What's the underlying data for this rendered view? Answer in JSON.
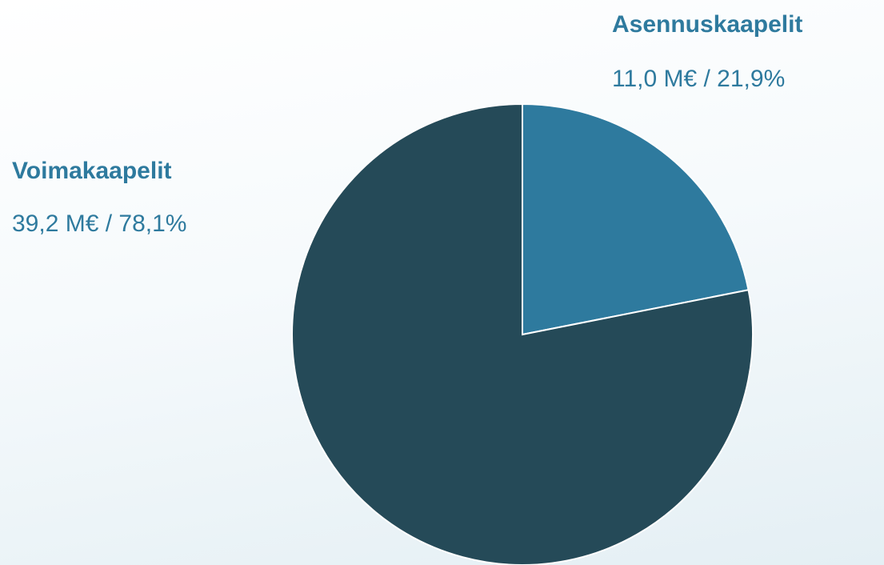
{
  "chart_data": {
    "type": "pie",
    "categories": [
      "Asennuskaapelit",
      "Voimakaapelit"
    ],
    "values": [
      21.9,
      78.1
    ],
    "value_labels": [
      "11,0 M€ / 21,9%",
      "39,2 M€ / 78,1%"
    ],
    "colors": [
      "#2e7a9e",
      "#254a58"
    ]
  }
}
